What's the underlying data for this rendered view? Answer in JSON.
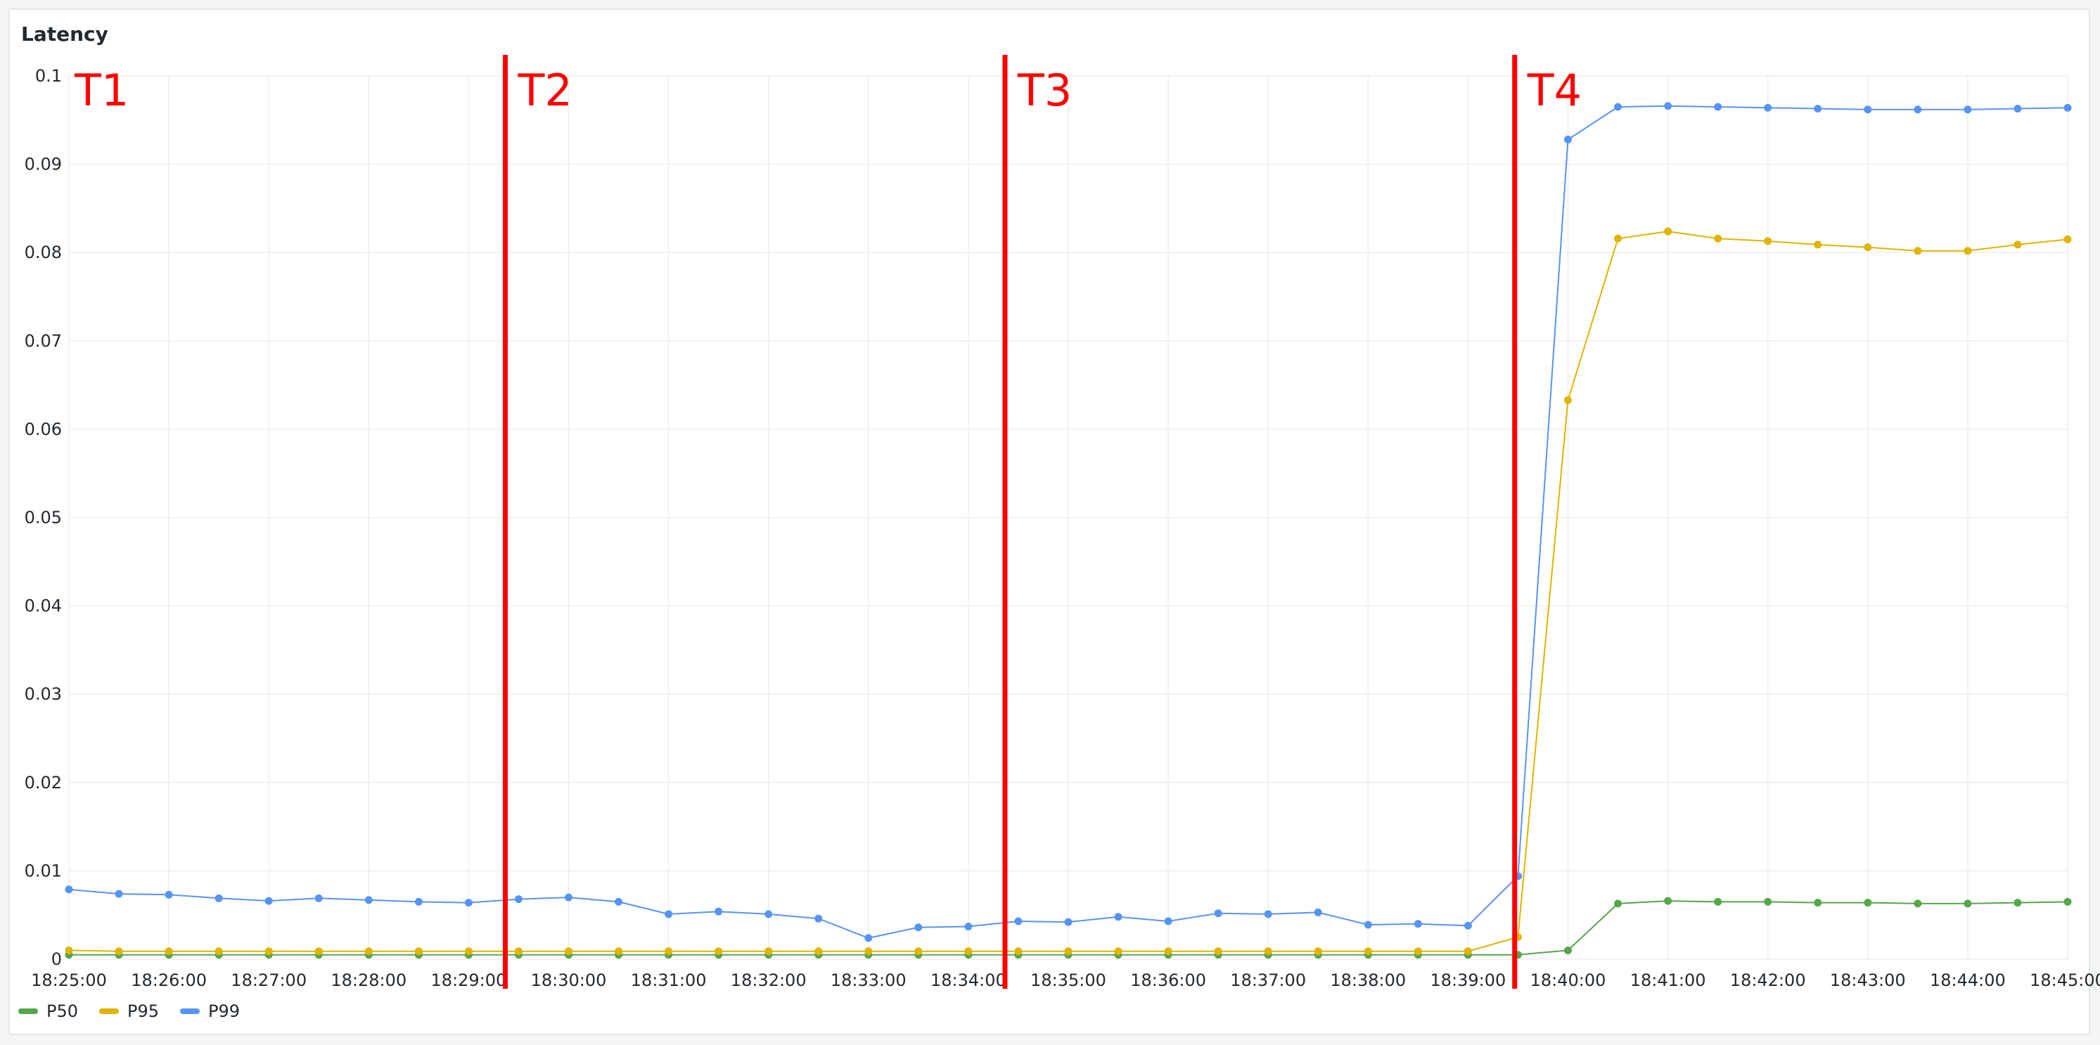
{
  "panel": {
    "title": "Latency"
  },
  "chart_data": {
    "type": "line",
    "title": "Latency",
    "xlabel": "",
    "ylabel": "",
    "ylim": [
      0,
      0.1
    ],
    "y_ticks": [
      "0",
      "0.01",
      "0.02",
      "0.03",
      "0.04",
      "0.05",
      "0.06",
      "0.07",
      "0.08",
      "0.09",
      "0.1"
    ],
    "x_tick_labels": [
      "18:25:00",
      "18:26:00",
      "18:27:00",
      "18:28:00",
      "18:29:00",
      "18:30:00",
      "18:31:00",
      "18:32:00",
      "18:33:00",
      "18:34:00",
      "18:35:00",
      "18:36:00",
      "18:37:00",
      "18:38:00",
      "18:39:00",
      "18:40:00",
      "18:41:00",
      "18:42:00",
      "18:43:00",
      "18:44:00",
      "18:45:00"
    ],
    "x": [
      "18:25:00",
      "18:25:30",
      "18:26:00",
      "18:26:30",
      "18:27:00",
      "18:27:30",
      "18:28:00",
      "18:28:30",
      "18:29:00",
      "18:29:30",
      "18:30:00",
      "18:30:30",
      "18:31:00",
      "18:31:30",
      "18:32:00",
      "18:32:30",
      "18:33:00",
      "18:33:30",
      "18:34:00",
      "18:34:30",
      "18:35:00",
      "18:35:30",
      "18:36:00",
      "18:36:30",
      "18:37:00",
      "18:37:30",
      "18:38:00",
      "18:38:30",
      "18:39:00",
      "18:39:30",
      "18:40:00",
      "18:40:30",
      "18:41:00",
      "18:41:30",
      "18:42:00",
      "18:42:30",
      "18:43:00",
      "18:43:30",
      "18:44:00",
      "18:44:30",
      "18:45:00"
    ],
    "grid": true,
    "legend_position": "bottom-left",
    "series": [
      {
        "name": "P50",
        "color": "#56a64b",
        "values": [
          0.0005,
          0.0005,
          0.0005,
          0.0005,
          0.0005,
          0.0005,
          0.0005,
          0.0005,
          0.0005,
          0.0005,
          0.0005,
          0.0005,
          0.0005,
          0.0005,
          0.0005,
          0.0005,
          0.0005,
          0.0005,
          0.0005,
          0.0005,
          0.0005,
          0.0005,
          0.0005,
          0.0005,
          0.0005,
          0.0005,
          0.0005,
          0.0005,
          0.0005,
          0.0005,
          0.001,
          0.0063,
          0.0066,
          0.0065,
          0.0065,
          0.0064,
          0.0064,
          0.0063,
          0.0063,
          0.0064,
          0.0065
        ]
      },
      {
        "name": "P95",
        "color": "#e0b400",
        "values": [
          0.001,
          0.0009,
          0.0009,
          0.0009,
          0.0009,
          0.0009,
          0.0009,
          0.0009,
          0.0009,
          0.0009,
          0.0009,
          0.0009,
          0.0009,
          0.0009,
          0.0009,
          0.0009,
          0.0009,
          0.0009,
          0.0009,
          0.0009,
          0.0009,
          0.0009,
          0.0009,
          0.0009,
          0.0009,
          0.0009,
          0.0009,
          0.0009,
          0.0009,
          0.0025,
          0.0633,
          0.0816,
          0.0824,
          0.0816,
          0.0813,
          0.0809,
          0.0806,
          0.0802,
          0.0802,
          0.0809,
          0.0815
        ]
      },
      {
        "name": "P99",
        "color": "#5794f2",
        "values": [
          0.0079,
          0.0074,
          0.0073,
          0.0069,
          0.0066,
          0.0069,
          0.0067,
          0.0065,
          0.0064,
          0.0068,
          0.007,
          0.0065,
          0.0051,
          0.0054,
          0.0051,
          0.0046,
          0.0024,
          0.0036,
          0.0037,
          0.0043,
          0.0042,
          0.0048,
          0.0043,
          0.0052,
          0.0051,
          0.0053,
          0.0039,
          0.004,
          0.0038,
          0.0094,
          0.0928,
          0.0965,
          0.0966,
          0.0965,
          0.0964,
          0.0963,
          0.0962,
          0.0962,
          0.0962,
          0.0963,
          0.0964
        ]
      }
    ],
    "annotations": [
      {
        "label": "T1",
        "x": "18:25:00",
        "line": false
      },
      {
        "label": "T2",
        "x": "18:29:22",
        "line": true
      },
      {
        "label": "T3",
        "x": "18:34:22",
        "line": true
      },
      {
        "label": "T4",
        "x": "18:39:28",
        "line": true
      }
    ],
    "annotation_color": "#ff0000"
  }
}
